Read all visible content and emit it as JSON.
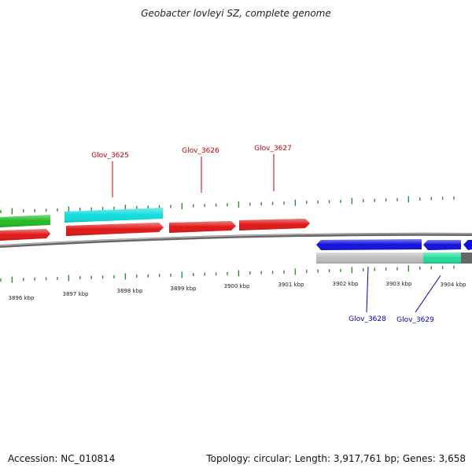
{
  "title": "Geobacter lovleyi SZ, complete genome",
  "footer": {
    "accession": "Accession: NC_010814",
    "summary": "Topology: circular; Length: 3,917,761 bp; Genes: 3,658"
  },
  "colors": {
    "backbone": "#7f7f7f",
    "tick": "#2e8b2e",
    "top_label": "#cc0000",
    "bottom_label": "#0000cc"
  },
  "features": [
    {
      "id": "gene-green-left",
      "strand": "+",
      "color": "#22bb22"
    },
    {
      "id": "gene-cyan",
      "strand": "+",
      "color": "#11dddd"
    },
    {
      "id": "gene-red-left",
      "strand": "+",
      "color": "#e01818"
    },
    {
      "id": "Glov_3625",
      "strand": "+",
      "color": "#e01818"
    },
    {
      "id": "Glov_3626",
      "strand": "+",
      "color": "#e01818"
    },
    {
      "id": "Glov_3627",
      "strand": "+",
      "color": "#e01818"
    },
    {
      "id": "Glov_3628",
      "strand": "-",
      "color": "#1010dd"
    },
    {
      "id": "Glov_3629",
      "strand": "-",
      "color": "#1010dd"
    },
    {
      "id": "gene-gray-track",
      "strand": "-",
      "color": "#bdbdbd"
    },
    {
      "id": "gene-mint",
      "strand": "-",
      "color": "#22dd99"
    },
    {
      "id": "gene-darkgray",
      "strand": "-",
      "color": "#666666"
    }
  ],
  "labels": {
    "top": [
      "Glov_3625",
      "Glov_3626",
      "Glov_3627"
    ],
    "bottom": [
      "Glov_3628",
      "Glov_3629"
    ]
  },
  "kbp_ticks": [
    "3896 kbp",
    "3897 kbp",
    "3898 kbp",
    "3899 kbp",
    "3900 kbp",
    "3901 kbp",
    "3902 kbp",
    "3903 kbp",
    "3904 kbp"
  ]
}
